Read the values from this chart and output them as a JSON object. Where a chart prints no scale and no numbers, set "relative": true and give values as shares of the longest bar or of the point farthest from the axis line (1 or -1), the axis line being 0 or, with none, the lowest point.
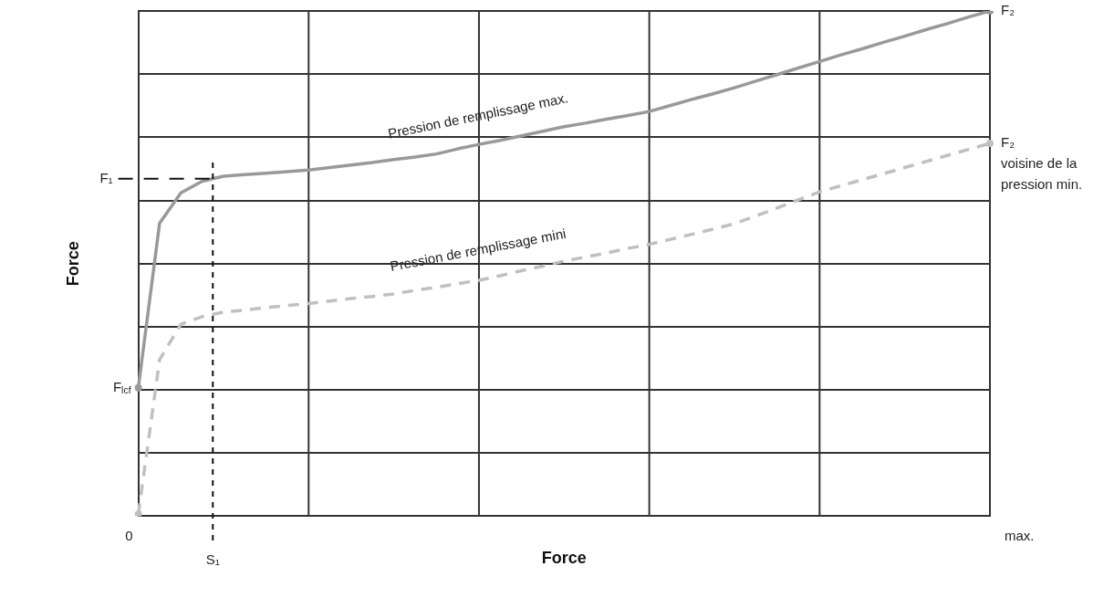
{
  "chart_data": {
    "type": "line",
    "relative": true,
    "xlabel": "Force",
    "ylabel": "Force",
    "grid": true,
    "categories": [
      null,
      null,
      null,
      null,
      null,
      null,
      null,
      null,
      null,
      null,
      null,
      null,
      null,
      null,
      null,
      null,
      null,
      null,
      null,
      null,
      null,
      null,
      null,
      null,
      null,
      null,
      null,
      null,
      null,
      null,
      null,
      null,
      null,
      null,
      null,
      null,
      null,
      null,
      null,
      null,
      null
    ],
    "series": [
      {
        "name": "Pression de remplissage max.",
        "color": "#999999",
        "line_style": "solid",
        "values": [
          0.254,
          0.58,
          0.64,
          0.663,
          0.673,
          0.676,
          0.679,
          0.682,
          0.685,
          0.69,
          0.695,
          0.7,
          0.706,
          0.711,
          0.717,
          0.727,
          0.736,
          0.744,
          0.753,
          0.762,
          0.771,
          0.778,
          0.786,
          0.793,
          0.801,
          0.813,
          0.825,
          0.836,
          0.848,
          0.861,
          0.874,
          0.887,
          0.9,
          0.913,
          0.925,
          0.938,
          0.95,
          0.963,
          0.975,
          0.988,
          1
        ]
      },
      {
        "name": "Pression de remplissage mini",
        "color": "#c0c0c0",
        "line_style": "dashed",
        "values": [
          0.004,
          0.31,
          0.38,
          0.395,
          0.404,
          0.408,
          0.413,
          0.417,
          0.421,
          0.426,
          0.431,
          0.435,
          0.44,
          0.447,
          0.453,
          0.46,
          0.467,
          0.476,
          0.486,
          0.495,
          0.505,
          0.513,
          0.521,
          0.53,
          0.538,
          0.548,
          0.558,
          0.568,
          0.579,
          0.594,
          0.61,
          0.626,
          0.642,
          0.654,
          0.666,
          0.678,
          0.69,
          0.702,
          0.714,
          0.726,
          0.738
        ]
      }
    ],
    "ref_lines": [
      {
        "axis": "y",
        "value": 0.668,
        "label": "F₁",
        "line_style": "dashed"
      }
    ],
    "annotations": [
      "0",
      "max.",
      "S₁",
      "F$_{lcf}$",
      "F₂",
      "F₂",
      "voisine de la pression min."
    ]
  }
}
